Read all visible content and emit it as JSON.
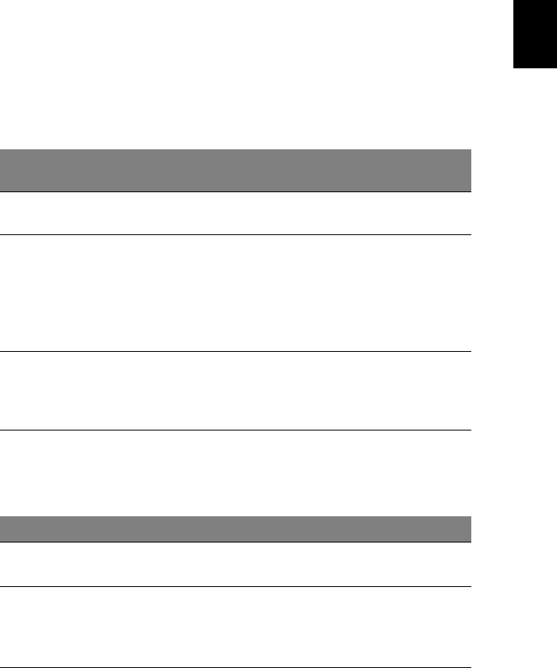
{
  "colors": {
    "header_fill": "#808080",
    "rule": "#000000",
    "thumb_tab": "#000000"
  },
  "tables": [
    {
      "rows": 4
    },
    {
      "rows": 2
    }
  ]
}
